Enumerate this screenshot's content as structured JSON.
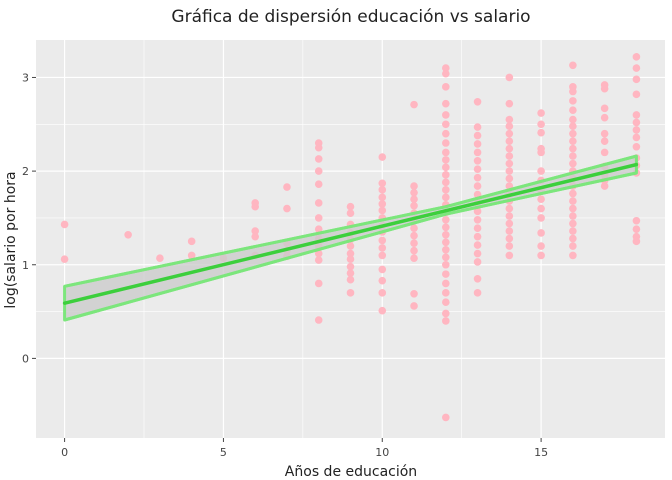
{
  "chart_data": {
    "type": "scatter",
    "title": "Gráfica de dispersión educación vs salario",
    "xlabel": "Años de educación",
    "ylabel": "log(salario por hora",
    "xlim": [
      -0.9,
      18.9
    ],
    "ylim": [
      -0.85,
      3.4
    ],
    "xticks": [
      0,
      5,
      10,
      15
    ],
    "yticks": [
      0,
      1,
      2,
      3
    ],
    "grid": true,
    "colors": {
      "panel": "#ebebeb",
      "grid": "#ffffff",
      "points": "#ffb6c1",
      "fit_line": "#3ccf3c",
      "band_fill": "#cccccc",
      "band_edge": "#7ce67c"
    },
    "series": [
      {
        "type": "scatter",
        "points": [
          [
            0,
            1.43
          ],
          [
            0,
            1.06
          ],
          [
            2,
            1.32
          ],
          [
            3,
            1.07
          ],
          [
            4,
            1.25
          ],
          [
            4,
            1.1
          ],
          [
            5,
            1.07
          ],
          [
            6,
            1.66
          ],
          [
            6,
            1.62
          ],
          [
            6,
            1.36
          ],
          [
            6,
            1.3
          ],
          [
            6,
            1.1
          ],
          [
            7,
            1.83
          ],
          [
            7,
            1.6
          ],
          [
            7,
            1.23
          ],
          [
            7,
            1.15
          ],
          [
            7,
            1.09
          ],
          [
            8,
            2.3
          ],
          [
            8,
            2.25
          ],
          [
            8,
            2.13
          ],
          [
            8,
            2.0
          ],
          [
            8,
            1.86
          ],
          [
            8,
            1.66
          ],
          [
            8,
            1.5
          ],
          [
            8,
            1.38
          ],
          [
            8,
            1.28
          ],
          [
            8,
            1.2
          ],
          [
            8,
            1.12
          ],
          [
            8,
            1.05
          ],
          [
            8,
            0.8
          ],
          [
            8,
            0.41
          ],
          [
            9,
            1.62
          ],
          [
            9,
            1.55
          ],
          [
            9,
            1.43
          ],
          [
            9,
            1.34
          ],
          [
            9,
            1.27
          ],
          [
            9,
            1.2
          ],
          [
            9,
            1.12
          ],
          [
            9,
            1.06
          ],
          [
            9,
            0.98
          ],
          [
            9,
            0.91
          ],
          [
            9,
            0.84
          ],
          [
            9,
            0.7
          ],
          [
            10,
            2.15
          ],
          [
            10,
            1.87
          ],
          [
            10,
            1.8
          ],
          [
            10,
            1.72
          ],
          [
            10,
            1.65
          ],
          [
            10,
            1.58
          ],
          [
            10,
            1.5
          ],
          [
            10,
            1.42
          ],
          [
            10,
            1.35
          ],
          [
            10,
            1.26
          ],
          [
            10,
            1.18
          ],
          [
            10,
            1.1
          ],
          [
            10,
            0.95
          ],
          [
            10,
            0.83
          ],
          [
            10,
            0.7
          ],
          [
            10,
            0.51
          ],
          [
            11,
            2.71
          ],
          [
            11,
            1.84
          ],
          [
            11,
            1.77
          ],
          [
            11,
            1.7
          ],
          [
            11,
            1.63
          ],
          [
            11,
            1.55
          ],
          [
            11,
            1.47
          ],
          [
            11,
            1.39
          ],
          [
            11,
            1.31
          ],
          [
            11,
            1.23
          ],
          [
            11,
            1.15
          ],
          [
            11,
            1.07
          ],
          [
            11,
            0.69
          ],
          [
            11,
            0.56
          ],
          [
            12,
            3.1
          ],
          [
            12,
            3.04
          ],
          [
            12,
            2.9
          ],
          [
            12,
            2.72
          ],
          [
            12,
            2.6
          ],
          [
            12,
            2.5
          ],
          [
            12,
            2.4
          ],
          [
            12,
            2.3
          ],
          [
            12,
            2.2
          ],
          [
            12,
            2.12
          ],
          [
            12,
            2.04
          ],
          [
            12,
            1.96
          ],
          [
            12,
            1.88
          ],
          [
            12,
            1.8
          ],
          [
            12,
            1.72
          ],
          [
            12,
            1.64
          ],
          [
            12,
            1.56
          ],
          [
            12,
            1.48
          ],
          [
            12,
            1.4
          ],
          [
            12,
            1.32
          ],
          [
            12,
            1.24
          ],
          [
            12,
            1.16
          ],
          [
            12,
            1.08
          ],
          [
            12,
            1.0
          ],
          [
            12,
            0.9
          ],
          [
            12,
            0.8
          ],
          [
            12,
            0.7
          ],
          [
            12,
            0.6
          ],
          [
            12,
            0.48
          ],
          [
            12,
            0.4
          ],
          [
            12,
            -0.63
          ],
          [
            13,
            2.74
          ],
          [
            13,
            2.47
          ],
          [
            13,
            2.38
          ],
          [
            13,
            2.29
          ],
          [
            13,
            2.2
          ],
          [
            13,
            2.11
          ],
          [
            13,
            2.02
          ],
          [
            13,
            1.93
          ],
          [
            13,
            1.84
          ],
          [
            13,
            1.75
          ],
          [
            13,
            1.66
          ],
          [
            13,
            1.57
          ],
          [
            13,
            1.48
          ],
          [
            13,
            1.39
          ],
          [
            13,
            1.3
          ],
          [
            13,
            1.21
          ],
          [
            13,
            1.12
          ],
          [
            13,
            1.03
          ],
          [
            13,
            0.85
          ],
          [
            13,
            0.7
          ],
          [
            14,
            3.0
          ],
          [
            14,
            2.72
          ],
          [
            14,
            2.55
          ],
          [
            14,
            2.48
          ],
          [
            14,
            2.4
          ],
          [
            14,
            2.32
          ],
          [
            14,
            2.24
          ],
          [
            14,
            2.16
          ],
          [
            14,
            2.08
          ],
          [
            14,
            2.0
          ],
          [
            14,
            1.92
          ],
          [
            14,
            1.84
          ],
          [
            14,
            1.76
          ],
          [
            14,
            1.68
          ],
          [
            14,
            1.6
          ],
          [
            14,
            1.52
          ],
          [
            14,
            1.44
          ],
          [
            14,
            1.36
          ],
          [
            14,
            1.28
          ],
          [
            14,
            1.2
          ],
          [
            14,
            1.1
          ],
          [
            15,
            2.62
          ],
          [
            15,
            2.5
          ],
          [
            15,
            2.41
          ],
          [
            15,
            2.24
          ],
          [
            15,
            2.2
          ],
          [
            15,
            2.0
          ],
          [
            15,
            1.9
          ],
          [
            15,
            1.8
          ],
          [
            15,
            1.7
          ],
          [
            15,
            1.6
          ],
          [
            15,
            1.5
          ],
          [
            15,
            1.34
          ],
          [
            15,
            1.2
          ],
          [
            15,
            1.1
          ],
          [
            16,
            3.13
          ],
          [
            16,
            2.9
          ],
          [
            16,
            2.85
          ],
          [
            16,
            2.75
          ],
          [
            16,
            2.65
          ],
          [
            16,
            2.55
          ],
          [
            16,
            2.48
          ],
          [
            16,
            2.4
          ],
          [
            16,
            2.32
          ],
          [
            16,
            2.24
          ],
          [
            16,
            2.16
          ],
          [
            16,
            2.08
          ],
          [
            16,
            2.0
          ],
          [
            16,
            1.92
          ],
          [
            16,
            1.84
          ],
          [
            16,
            1.76
          ],
          [
            16,
            1.68
          ],
          [
            16,
            1.6
          ],
          [
            16,
            1.52
          ],
          [
            16,
            1.44
          ],
          [
            16,
            1.36
          ],
          [
            16,
            1.28
          ],
          [
            16,
            1.2
          ],
          [
            16,
            1.1
          ],
          [
            17,
            2.92
          ],
          [
            17,
            2.88
          ],
          [
            17,
            2.67
          ],
          [
            17,
            2.57
          ],
          [
            17,
            2.4
          ],
          [
            17,
            2.32
          ],
          [
            17,
            2.2
          ],
          [
            17,
            2.05
          ],
          [
            17,
            1.96
          ],
          [
            17,
            1.9
          ],
          [
            17,
            1.84
          ],
          [
            18,
            3.22
          ],
          [
            18,
            3.1
          ],
          [
            18,
            2.98
          ],
          [
            18,
            2.82
          ],
          [
            18,
            2.6
          ],
          [
            18,
            2.52
          ],
          [
            18,
            2.44
          ],
          [
            18,
            2.36
          ],
          [
            18,
            2.26
          ],
          [
            18,
            2.14
          ],
          [
            18,
            2.06
          ],
          [
            18,
            1.98
          ],
          [
            18,
            1.47
          ],
          [
            18,
            1.38
          ],
          [
            18,
            1.3
          ],
          [
            18,
            1.25
          ]
        ]
      },
      {
        "type": "line",
        "x": [
          0,
          18
        ],
        "y": [
          0.59,
          2.07
        ]
      },
      {
        "type": "band",
        "x": [
          0,
          12,
          18
        ],
        "lower": [
          0.41,
          1.54,
          1.98
        ],
        "upper": [
          0.77,
          1.62,
          2.16
        ]
      }
    ]
  }
}
